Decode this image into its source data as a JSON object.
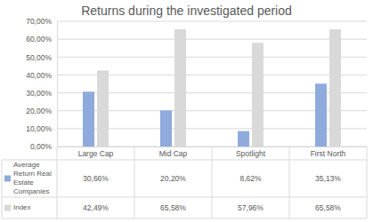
{
  "chart_data": {
    "type": "bar",
    "title": "Returns during the investigated period",
    "categories": [
      "Large Cap",
      "Mid Cap",
      "Spotlight",
      "First North"
    ],
    "series": [
      {
        "name": "Average Return Real Estate Companies",
        "color": "#8faadc",
        "values": [
          30.66,
          20.2,
          8.62,
          35.13
        ],
        "value_labels": [
          "30,66%",
          "20,20%",
          "8,62%",
          "35,13%"
        ]
      },
      {
        "name": "Index",
        "color": "#d9d9d9",
        "values": [
          42.49,
          65.58,
          57.96,
          65.58
        ],
        "value_labels": [
          "42,49%",
          "65,58%",
          "57,96%",
          "65,58%"
        ]
      }
    ],
    "ylim": [
      0,
      70
    ],
    "yticks": [
      {
        "value": 0,
        "label": "0,00%"
      },
      {
        "value": 10,
        "label": "10,00%"
      },
      {
        "value": 20,
        "label": "20,00%"
      },
      {
        "value": 30,
        "label": "30,00%"
      },
      {
        "value": 40,
        "label": "40,00%"
      },
      {
        "value": 50,
        "label": "50,00%"
      },
      {
        "value": 60,
        "label": "60,00%"
      },
      {
        "value": 70,
        "label": "70,00%"
      }
    ],
    "grid": true
  }
}
